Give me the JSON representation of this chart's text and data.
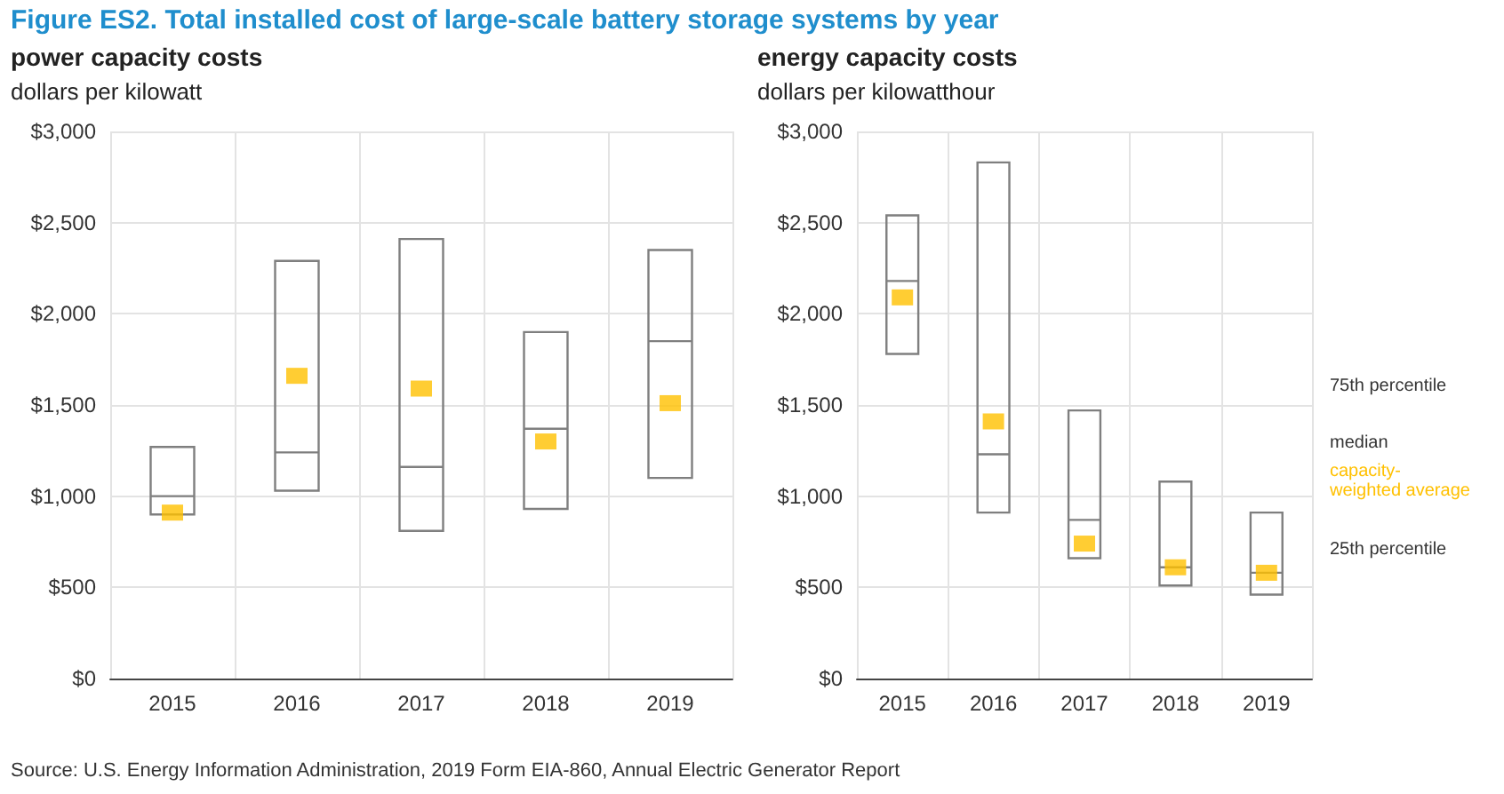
{
  "chart_data": [
    {
      "type": "box",
      "title": "Figure ES2. Total installed cost of large-scale battery storage systems by year",
      "subtitle": "power capacity costs",
      "ylabel": "dollars per kilowatt",
      "categories": [
        "2015",
        "2016",
        "2017",
        "2018",
        "2019"
      ],
      "series": [
        {
          "type": "box",
          "color": "#7f7f7f",
          "boxes": [
            {
              "low": 900,
              "q1": 900,
              "median": 1000,
              "q3": 1270,
              "high": 1270
            },
            {
              "low": 1030,
              "q1": 1030,
              "median": 1240,
              "q3": 2290,
              "high": 2290
            },
            {
              "low": 810,
              "q1": 810,
              "median": 1160,
              "q3": 2410,
              "high": 2410
            },
            {
              "low": 930,
              "q1": 930,
              "median": 1370,
              "q3": 1900,
              "high": 1900
            },
            {
              "low": 1100,
              "q1": 1100,
              "median": 1850,
              "q3": 2350,
              "high": 2350
            }
          ]
        },
        {
          "type": "scatter",
          "color": "#ffc000",
          "marker": "square",
          "values": [
            910,
            1660,
            1590,
            1300,
            1510
          ]
        }
      ],
      "ylim": [
        0,
        3000
      ],
      "yticks": [
        {
          "value": 0,
          "label": "$0"
        },
        {
          "value": 500,
          "label": "$500"
        },
        {
          "value": 1000,
          "label": "$1,000"
        },
        {
          "value": 1500,
          "label": "$1,500"
        },
        {
          "value": 2000,
          "label": "$2,000"
        },
        {
          "value": 2500,
          "label": "$2,500"
        },
        {
          "value": 3000,
          "label": "$3,000"
        }
      ],
      "grid": true,
      "annotations": [
        "Source: U.S. Energy Information Administration, 2019 Form EIA-860, Annual Electric Generator Report"
      ]
    },
    {
      "type": "box",
      "subtitle": "energy capacity costs",
      "ylabel": "dollars per kilowatthour",
      "categories": [
        "2015",
        "2016",
        "2017",
        "2018",
        "2019"
      ],
      "series": [
        {
          "type": "box",
          "color": "#7f7f7f",
          "boxes": [
            {
              "low": 1780,
              "q1": 1780,
              "median": 2180,
              "q3": 2540,
              "high": 2540
            },
            {
              "low": 910,
              "q1": 910,
              "median": 1230,
              "q3": 2830,
              "high": 2830
            },
            {
              "low": 660,
              "q1": 660,
              "median": 870,
              "q3": 1470,
              "high": 1470
            },
            {
              "low": 510,
              "q1": 510,
              "median": 610,
              "q3": 1080,
              "high": 1080
            },
            {
              "low": 460,
              "q1": 460,
              "median": 580,
              "q3": 910,
              "high": 910
            }
          ]
        },
        {
          "type": "scatter",
          "name": "capacity-weighted average",
          "color": "#ffc000",
          "marker": "square",
          "values": [
            2090,
            1410,
            740,
            610,
            580
          ]
        }
      ],
      "ylim": [
        0,
        3000
      ],
      "yticks": [
        {
          "value": 0,
          "label": "$0"
        },
        {
          "value": 500,
          "label": "$500"
        },
        {
          "value": 1000,
          "label": "$1,000"
        },
        {
          "value": 1500,
          "label": "$1,500"
        },
        {
          "value": 2000,
          "label": "$2,000"
        },
        {
          "value": 2500,
          "label": "$2,500"
        },
        {
          "value": 3000,
          "label": "$3,000"
        }
      ],
      "grid": true,
      "annotations": [
        "75th percentile",
        "median",
        "25th percentile"
      ]
    }
  ]
}
